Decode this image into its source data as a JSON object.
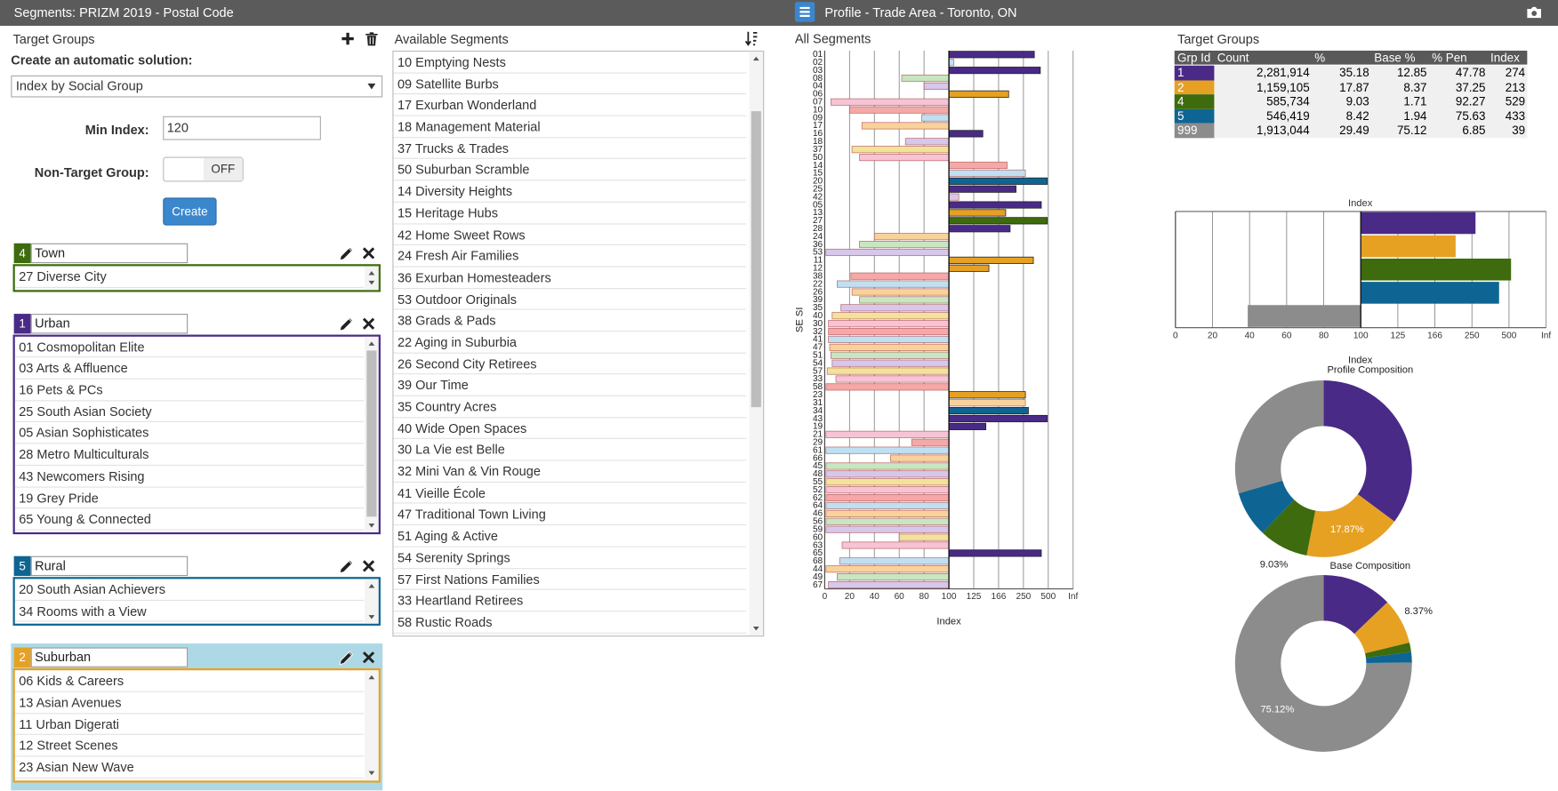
{
  "header": {
    "left_title": "Segments: PRIZM 2019 - Postal Code",
    "right_title": "Profile - Trade Area - Toronto, ON"
  },
  "form": {
    "title": "Target Groups",
    "auto_label": "Create an automatic solution:",
    "method": "Index by Social Group",
    "min_index_label": "Min Index:",
    "min_index": "120",
    "non_target_label": "Non-Target Group:",
    "toggle": "OFF",
    "button": "Create"
  },
  "groups": [
    {
      "id": "4",
      "name": "Town",
      "color": "#3d6b0d",
      "segments": [
        "27 Diverse City"
      ]
    },
    {
      "id": "1",
      "name": "Urban",
      "color": "#4a2a87",
      "segments": [
        "01 Cosmopolitan Elite",
        "03 Arts & Affluence",
        "16 Pets & PCs",
        "25 South Asian Society",
        "05 Asian Sophisticates",
        "28 Metro Multiculturals",
        "43 Newcomers Rising",
        "19 Grey Pride",
        "65 Young & Connected"
      ]
    },
    {
      "id": "5",
      "name": "Rural",
      "color": "#0e6593",
      "segments": [
        "20 South Asian Achievers",
        "34 Rooms with a View"
      ]
    },
    {
      "id": "2",
      "name": "Suburban",
      "color": "#e6a123",
      "segments": [
        "06 Kids & Careers",
        "13 Asian Avenues",
        "11 Urban Digerati",
        "12 Street Scenes",
        "23 Asian New Wave"
      ]
    }
  ],
  "available": {
    "title": "Available Segments",
    "items": [
      "10 Emptying Nests",
      "09 Satellite Burbs",
      "17 Exurban Wonderland",
      "18 Management Material",
      "37 Trucks & Trades",
      "50 Suburban Scramble",
      "14 Diversity Heights",
      "15 Heritage Hubs",
      "42 Home Sweet Rows",
      "24 Fresh Air Families",
      "36 Exurban Homesteaders",
      "53 Outdoor Originals",
      "38 Grads & Pads",
      "22 Aging in Suburbia",
      "26 Second City Retirees",
      "39 Our Time",
      "35 Country Acres",
      "40 Wide Open Spaces",
      "30 La Vie est Belle",
      "32 Mini Van & Vin Rouge",
      "41 Vieille École",
      "47 Traditional Town Living",
      "51 Aging & Active",
      "54 Serenity Springs",
      "57 First Nations Families",
      "33 Heartland Retirees",
      "58 Rustic Roads"
    ]
  },
  "table": {
    "title": "Target Groups",
    "columns": [
      "Grp Id",
      "Count",
      "%",
      "Base %",
      "% Pen",
      "Index"
    ],
    "row_colors": [
      "#4a2a87",
      "#e6a123",
      "#3d6b0d",
      "#0e6593",
      "#8c8c8c"
    ],
    "rows": [
      [
        "1",
        "2,281,914",
        "35.18",
        "12.85",
        "47.78",
        "274"
      ],
      [
        "2",
        "1,159,105",
        "17.87",
        "8.37",
        "37.25",
        "213"
      ],
      [
        "4",
        "585,734",
        "9.03",
        "1.71",
        "92.27",
        "529"
      ],
      [
        "5",
        "546,419",
        "8.42",
        "1.94",
        "75.63",
        "433"
      ],
      [
        "999",
        "1,913,044",
        "29.49",
        "75.12",
        "6.85",
        "39"
      ]
    ]
  },
  "chart_data": [
    {
      "type": "bar",
      "orientation": "horizontal",
      "title": "All Segments",
      "ylabel": "SE SI",
      "xlabel": "Index",
      "base": 100,
      "grid": true,
      "categories": [
        "01",
        "02",
        "03",
        "08",
        "04",
        "06",
        "07",
        "10",
        "09",
        "17",
        "16",
        "18",
        "37",
        "50",
        "14",
        "15",
        "20",
        "25",
        "42",
        "05",
        "13",
        "27",
        "28",
        "24",
        "36",
        "53",
        "11",
        "12",
        "38",
        "22",
        "26",
        "39",
        "35",
        "40",
        "30",
        "32",
        "41",
        "47",
        "51",
        "54",
        "57",
        "33",
        "58",
        "23",
        "31",
        "34",
        "43",
        "19",
        "21",
        "29",
        "61",
        "66",
        "45",
        "48",
        "55",
        "52",
        "62",
        "64",
        "46",
        "56",
        "59",
        "60",
        "63",
        "65",
        "68",
        "44",
        "49",
        "67"
      ],
      "values": [
        360,
        105,
        420,
        62,
        80,
        200,
        5,
        20,
        78,
        30,
        140,
        65,
        22,
        28,
        195,
        270,
        490,
        225,
        110,
        430,
        190,
        490,
        205,
        40,
        28,
        1,
        350,
        150,
        21,
        10,
        22,
        28,
        13,
        6,
        3,
        3,
        3,
        4,
        5,
        6,
        2,
        9,
        1,
        270,
        270,
        300,
        490,
        145,
        1,
        70,
        1,
        53,
        1,
        1,
        1,
        1,
        1,
        1,
        1,
        1,
        1,
        60,
        14,
        430,
        12,
        1,
        10,
        3
      ],
      "palette": [
        "#f4a9a8",
        "#bfe0f2",
        "#f9d29b",
        "#c7e6c1",
        "#d7c7ea",
        "#f2e29b",
        "#f6c4d4"
      ],
      "xticks": [
        0,
        20,
        40,
        60,
        80,
        100,
        125,
        166,
        250,
        500,
        {
          "value": null,
          "label": "Inf"
        }
      ]
    },
    {
      "type": "bar",
      "orientation": "horizontal",
      "title": "Index",
      "xlabel": "Index",
      "base": 100,
      "grid": true,
      "values": [
        274,
        213,
        529,
        433,
        39
      ],
      "colors": [
        "#4a2a87",
        "#e6a123",
        "#3d6b0d",
        "#0e6593",
        "#8c8c8c"
      ],
      "xticks": [
        0,
        20,
        40,
        60,
        80,
        100,
        125,
        166,
        250,
        500,
        {
          "value": null,
          "label": "Inf"
        }
      ]
    },
    {
      "type": "pie",
      "title": "Profile Composition",
      "donut": true,
      "values": [
        35.18,
        17.87,
        9.03,
        8.42,
        29.49
      ],
      "value_labels": [
        null,
        "17.87%",
        "9.03%",
        null,
        null
      ],
      "colors": [
        "#4a2a87",
        "#e6a123",
        "#3d6b0d",
        "#0e6593",
        "#8c8c8c"
      ]
    },
    {
      "type": "pie",
      "title": "Base Composition",
      "donut": true,
      "values": [
        12.85,
        8.37,
        1.71,
        1.94,
        75.12
      ],
      "value_labels": [
        null,
        "8.37%",
        null,
        null,
        "75.12%"
      ],
      "colors": [
        "#4a2a87",
        "#e6a123",
        "#3d6b0d",
        "#0e6593",
        "#8c8c8c"
      ]
    }
  ]
}
